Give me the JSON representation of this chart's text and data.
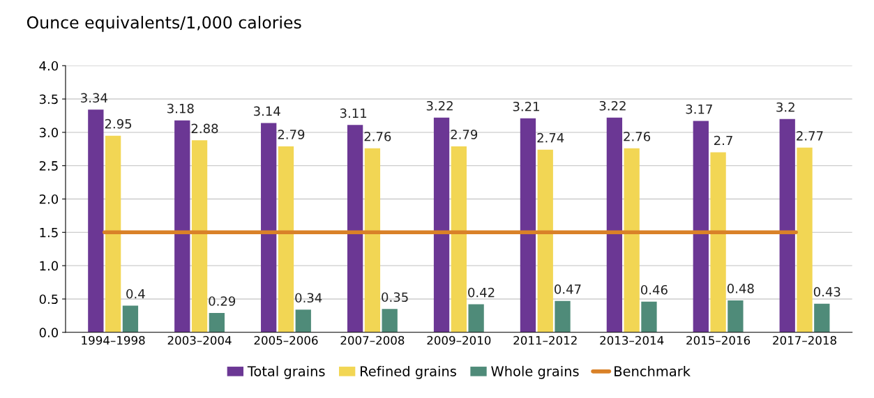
{
  "chart_data": {
    "type": "bar",
    "title": "Ounce equivalents/1,000 calories",
    "categories": [
      "1994–1998",
      "2003–2004",
      "2005–2006",
      "2007–2008",
      "2009–2010",
      "2011–2012",
      "2013–2014",
      "2015–2016",
      "2017–2018"
    ],
    "series": [
      {
        "name": "Total grains",
        "color": "#6b3794",
        "values": [
          3.34,
          3.18,
          3.14,
          3.11,
          3.22,
          3.21,
          3.22,
          3.17,
          3.2
        ],
        "value_labels": [
          "3.34",
          "3.18",
          "3.14",
          "3.11",
          "3.22",
          "3.21",
          "3.22",
          "3.17",
          "3.2"
        ]
      },
      {
        "name": "Refined grains",
        "color": "#f2d654",
        "values": [
          2.95,
          2.88,
          2.79,
          2.76,
          2.79,
          2.74,
          2.76,
          2.7,
          2.77
        ],
        "value_labels": [
          "2.95",
          "2.88",
          "2.79",
          "2.76",
          "2.79",
          "2.74",
          "2.76",
          "2.7",
          "2.77"
        ]
      },
      {
        "name": "Whole grains",
        "color": "#4f8b79",
        "values": [
          0.4,
          0.29,
          0.34,
          0.35,
          0.42,
          0.47,
          0.46,
          0.48,
          0.43
        ],
        "value_labels": [
          "0.4",
          "0.29",
          "0.34",
          "0.35",
          "0.42",
          "0.47",
          "0.46",
          "0.48",
          "0.43"
        ]
      },
      {
        "name": "Benchmark",
        "type": "line",
        "color": "#d98128",
        "values": [
          1.5,
          1.5,
          1.5,
          1.5,
          1.5,
          1.5,
          1.5,
          1.5,
          1.5
        ]
      }
    ],
    "ylim": [
      0,
      4.0
    ],
    "yticks": [
      {
        "value": 0,
        "label": "0.0"
      },
      {
        "value": 0.5,
        "label": "0.5"
      },
      {
        "value": 1.0,
        "label": "1.0"
      },
      {
        "value": 1.5,
        "label": "1.5"
      },
      {
        "value": 2.0,
        "label": "2.0"
      },
      {
        "value": 2.5,
        "label": "2.5"
      },
      {
        "value": 3.0,
        "label": "3.0"
      },
      {
        "value": 3.5,
        "label": "3.5"
      },
      {
        "value": 4.0,
        "label": "4.0"
      }
    ],
    "grid": "y",
    "legend": "bottom"
  }
}
